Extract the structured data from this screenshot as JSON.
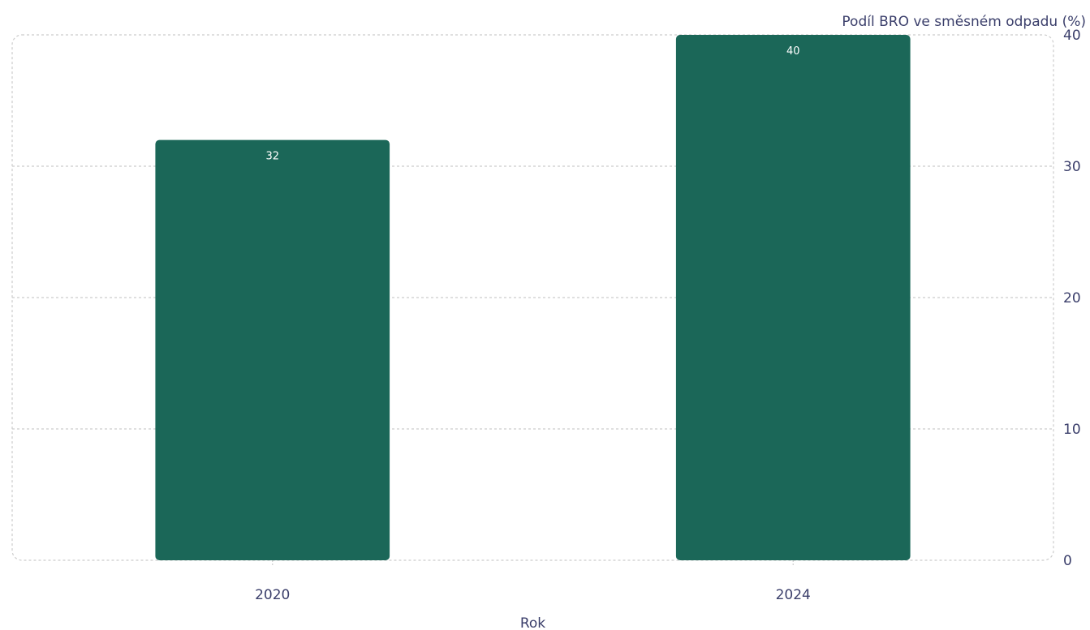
{
  "colors": {
    "bar": "#1b6758",
    "text": "#3b3f6b",
    "grid": "#cccccc",
    "bar_label": "#ffffff",
    "background": "#ffffff"
  },
  "chart_data": {
    "type": "bar",
    "categories": [
      "2020",
      "2024"
    ],
    "values": [
      32,
      40
    ],
    "data_labels": [
      "32",
      "40"
    ],
    "xlabel": "Rok",
    "ylabel": "Podíl BRO ve směsném odpadu (%)",
    "ylim": [
      0,
      40
    ],
    "yticks": [
      0,
      10,
      20,
      30,
      40
    ],
    "y_axis_side": "right",
    "grid": true,
    "legend": false
  }
}
